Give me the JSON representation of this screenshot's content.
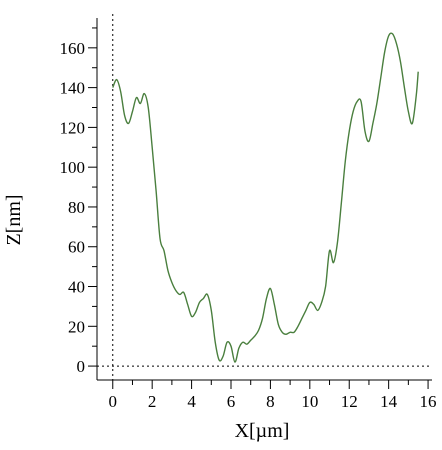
{
  "chart_data": {
    "type": "line",
    "title": "",
    "xlabel": "X[µm]",
    "ylabel": "Z[nm]",
    "xlim": [
      -0.8,
      16.2
    ],
    "ylim": [
      -7,
      175
    ],
    "x_ticks": [
      0,
      2,
      4,
      6,
      8,
      10,
      12,
      14,
      16
    ],
    "y_ticks": [
      0,
      20,
      40,
      60,
      80,
      100,
      120,
      140,
      160
    ],
    "x_tick_labels": [
      "0",
      "2",
      "4",
      "6",
      "8",
      "10",
      "12",
      "14",
      "16"
    ],
    "y_tick_labels": [
      "0",
      "20",
      "40",
      "60",
      "80",
      "100",
      "120",
      "140",
      "160"
    ],
    "grid": false,
    "reference_lines": {
      "x": 0,
      "y": 0,
      "style": "dotted"
    },
    "line_color": "#4a7f3e",
    "series": [
      {
        "values": [
          [
            0.0,
            140
          ],
          [
            0.2,
            144
          ],
          [
            0.4,
            138
          ],
          [
            0.6,
            126
          ],
          [
            0.8,
            122
          ],
          [
            1.0,
            128
          ],
          [
            1.2,
            135
          ],
          [
            1.4,
            132
          ],
          [
            1.6,
            137
          ],
          [
            1.8,
            130
          ],
          [
            2.0,
            110
          ],
          [
            2.2,
            88
          ],
          [
            2.4,
            64
          ],
          [
            2.6,
            58
          ],
          [
            2.8,
            48
          ],
          [
            3.0,
            42
          ],
          [
            3.2,
            38
          ],
          [
            3.4,
            36
          ],
          [
            3.6,
            37
          ],
          [
            3.8,
            31
          ],
          [
            4.0,
            25
          ],
          [
            4.2,
            27
          ],
          [
            4.4,
            32
          ],
          [
            4.6,
            34
          ],
          [
            4.8,
            36
          ],
          [
            5.0,
            28
          ],
          [
            5.2,
            12
          ],
          [
            5.4,
            3
          ],
          [
            5.6,
            5
          ],
          [
            5.8,
            12
          ],
          [
            6.0,
            10
          ],
          [
            6.2,
            2
          ],
          [
            6.4,
            9
          ],
          [
            6.6,
            12
          ],
          [
            6.8,
            11
          ],
          [
            7.0,
            13
          ],
          [
            7.2,
            15
          ],
          [
            7.4,
            18
          ],
          [
            7.6,
            24
          ],
          [
            7.8,
            34
          ],
          [
            8.0,
            39
          ],
          [
            8.2,
            31
          ],
          [
            8.4,
            21
          ],
          [
            8.6,
            17
          ],
          [
            8.8,
            16
          ],
          [
            9.0,
            17
          ],
          [
            9.2,
            17
          ],
          [
            9.4,
            20
          ],
          [
            9.6,
            24
          ],
          [
            9.8,
            28
          ],
          [
            10.0,
            32
          ],
          [
            10.2,
            31
          ],
          [
            10.4,
            28
          ],
          [
            10.6,
            32
          ],
          [
            10.8,
            40
          ],
          [
            11.0,
            58
          ],
          [
            11.2,
            52
          ],
          [
            11.4,
            62
          ],
          [
            11.6,
            82
          ],
          [
            11.8,
            103
          ],
          [
            12.0,
            118
          ],
          [
            12.2,
            128
          ],
          [
            12.4,
            133
          ],
          [
            12.6,
            133
          ],
          [
            12.8,
            118
          ],
          [
            13.0,
            113
          ],
          [
            13.2,
            122
          ],
          [
            13.4,
            132
          ],
          [
            13.6,
            145
          ],
          [
            13.8,
            158
          ],
          [
            14.0,
            166
          ],
          [
            14.2,
            167
          ],
          [
            14.4,
            162
          ],
          [
            14.6,
            153
          ],
          [
            14.8,
            140
          ],
          [
            15.0,
            128
          ],
          [
            15.2,
            122
          ],
          [
            15.4,
            136
          ],
          [
            15.5,
            148
          ]
        ]
      }
    ]
  }
}
